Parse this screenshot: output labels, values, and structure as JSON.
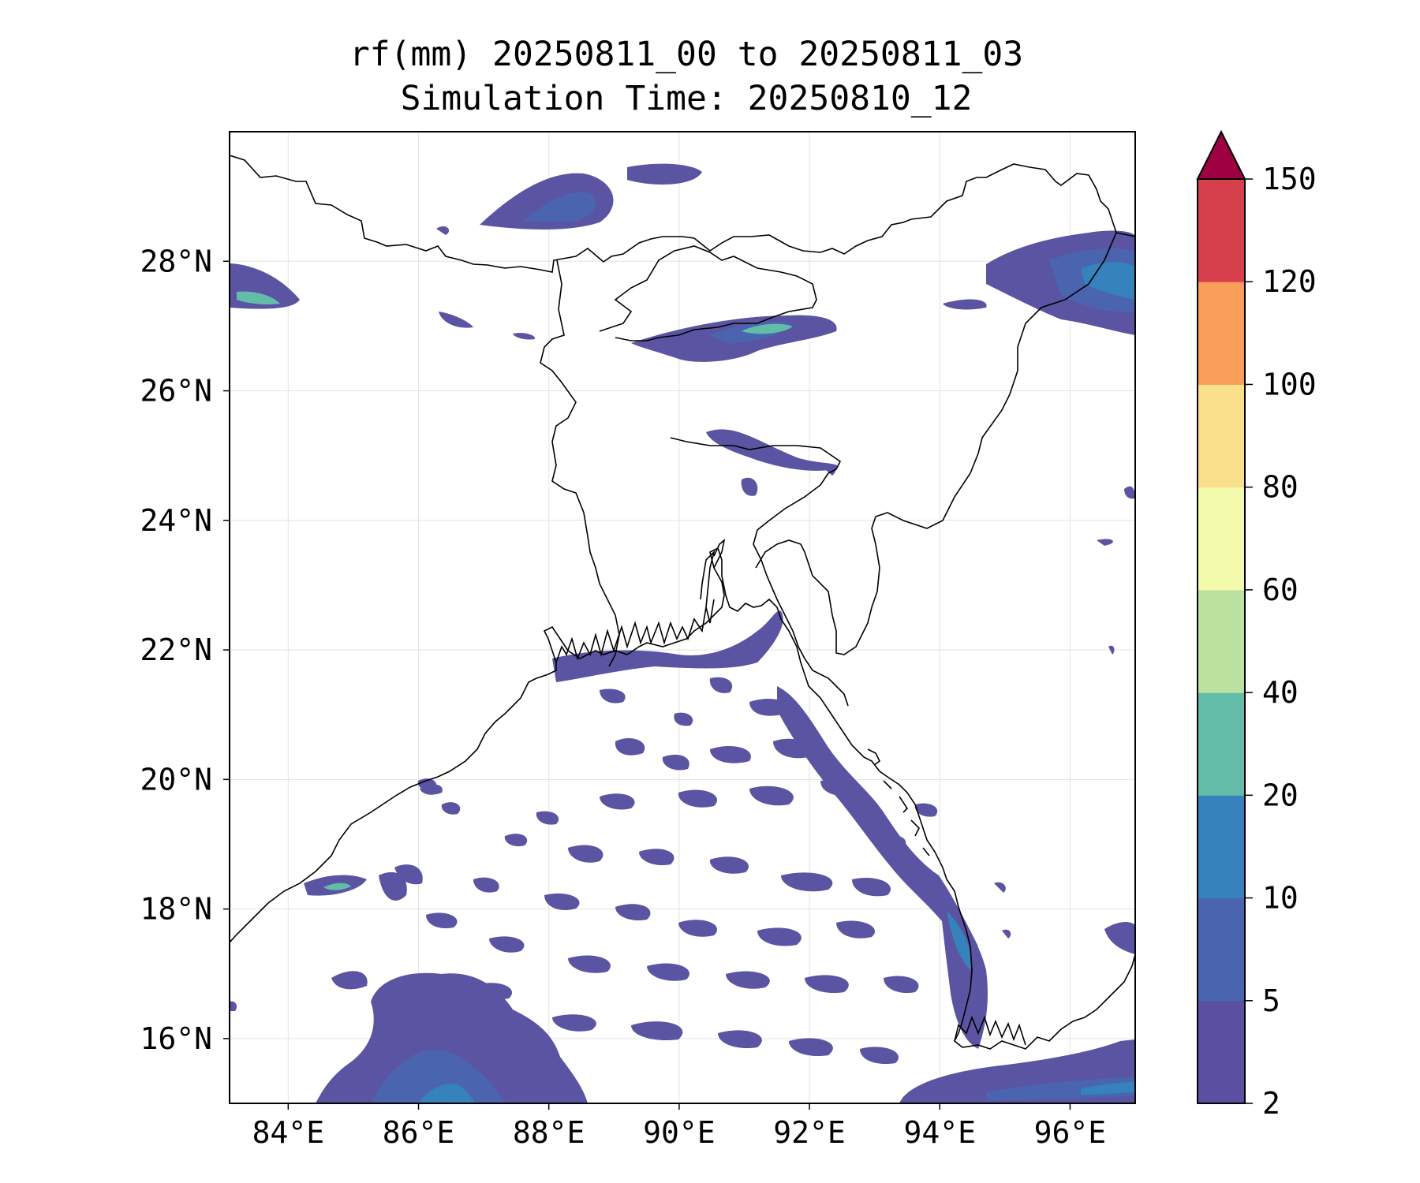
{
  "title": {
    "line1": "rf(mm) 20250811_00 to 20250811_03",
    "line2": "Simulation Time: 20250810_12"
  },
  "map": {
    "lon_range": [
      83.1,
      97.0
    ],
    "lat_range": [
      15.0,
      30.0
    ],
    "lon_ticks": [
      "84°E",
      "86°E",
      "88°E",
      "90°E",
      "92°E",
      "94°E",
      "96°E"
    ],
    "lon_tick_values": [
      84,
      86,
      88,
      90,
      92,
      94,
      96
    ],
    "lat_ticks": [
      "28°N",
      "26°N",
      "24°N",
      "22°N",
      "20°N",
      "18°N",
      "16°N"
    ],
    "lat_tick_values": [
      28,
      26,
      24,
      22,
      20,
      18,
      16
    ],
    "gridlines": true
  },
  "colorbar": {
    "levels": [
      "2",
      "5",
      "10",
      "20",
      "40",
      "60",
      "80",
      "100",
      "120",
      "150"
    ],
    "colors": [
      "#5b4fa2",
      "#4a64b0",
      "#3682bc",
      "#62bca8",
      "#bde2a0",
      "#f4fbad",
      "#fbe08c",
      "#f99e59",
      "#d6404d",
      "#9e0142"
    ],
    "extend": "max"
  },
  "rain_fill_colors": {
    "light": "#5b54a3",
    "moderate": "#4a64b0",
    "heavy": "#3682bc",
    "core": "#62bca8"
  }
}
